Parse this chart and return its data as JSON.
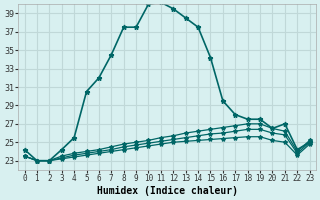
{
  "xlabel": "Humidex (Indice chaleur)",
  "ylabel": "",
  "bg_color": "#d8f0f0",
  "grid_color": "#c0d8d8",
  "line_color": "#006666",
  "xlim": [
    0,
    23
  ],
  "ylim": [
    22,
    40
  ],
  "yticks": [
    23,
    25,
    27,
    29,
    31,
    33,
    35,
    37,
    39
  ],
  "xticks": [
    0,
    1,
    2,
    3,
    4,
    5,
    6,
    7,
    8,
    9,
    10,
    11,
    12,
    13,
    14,
    15,
    16,
    17,
    18,
    19,
    20,
    21,
    22,
    23
  ],
  "line1_x": [
    0,
    1,
    2,
    3,
    4,
    5,
    6,
    7,
    8,
    9,
    10,
    11,
    12,
    13,
    14,
    15,
    16,
    17,
    18,
    19,
    20,
    21,
    22,
    23
  ],
  "line1_y": [
    24.2,
    23.0,
    23.0,
    24.2,
    25.5,
    30.5,
    32.0,
    34.5,
    37.5,
    37.5,
    40.0,
    40.2,
    39.5,
    38.5,
    37.5,
    34.2,
    29.5,
    28.0,
    27.5,
    27.5,
    26.5,
    27.0,
    24.2,
    25.0
  ],
  "line2_x": [
    0,
    1,
    2,
    3,
    4,
    5,
    6,
    7,
    8,
    9,
    10,
    11,
    12,
    13,
    14,
    15,
    16,
    17,
    18,
    19,
    20,
    21,
    22,
    23
  ],
  "line2_y": [
    23.5,
    23.0,
    23.0,
    23.5,
    23.8,
    24.0,
    24.2,
    24.5,
    24.8,
    25.0,
    25.2,
    25.5,
    25.7,
    26.0,
    26.2,
    26.4,
    26.6,
    26.8,
    27.0,
    27.0,
    26.5,
    26.2,
    24.0,
    25.2
  ],
  "line3_x": [
    0,
    1,
    2,
    3,
    4,
    5,
    6,
    7,
    8,
    9,
    10,
    11,
    12,
    13,
    14,
    15,
    16,
    17,
    18,
    19,
    20,
    21,
    22,
    23
  ],
  "line3_y": [
    23.5,
    23.0,
    23.0,
    23.3,
    23.6,
    23.8,
    24.0,
    24.2,
    24.5,
    24.7,
    24.9,
    25.1,
    25.3,
    25.5,
    25.7,
    25.9,
    26.0,
    26.2,
    26.4,
    26.4,
    26.0,
    25.8,
    23.8,
    25.0
  ],
  "line4_x": [
    0,
    1,
    2,
    3,
    4,
    5,
    6,
    7,
    8,
    9,
    10,
    11,
    12,
    13,
    14,
    15,
    16,
    17,
    18,
    19,
    20,
    21,
    22,
    23
  ],
  "line4_y": [
    23.5,
    23.0,
    23.0,
    23.2,
    23.4,
    23.6,
    23.8,
    24.0,
    24.2,
    24.4,
    24.6,
    24.8,
    25.0,
    25.1,
    25.2,
    25.3,
    25.4,
    25.5,
    25.6,
    25.6,
    25.2,
    25.0,
    23.6,
    24.8
  ]
}
